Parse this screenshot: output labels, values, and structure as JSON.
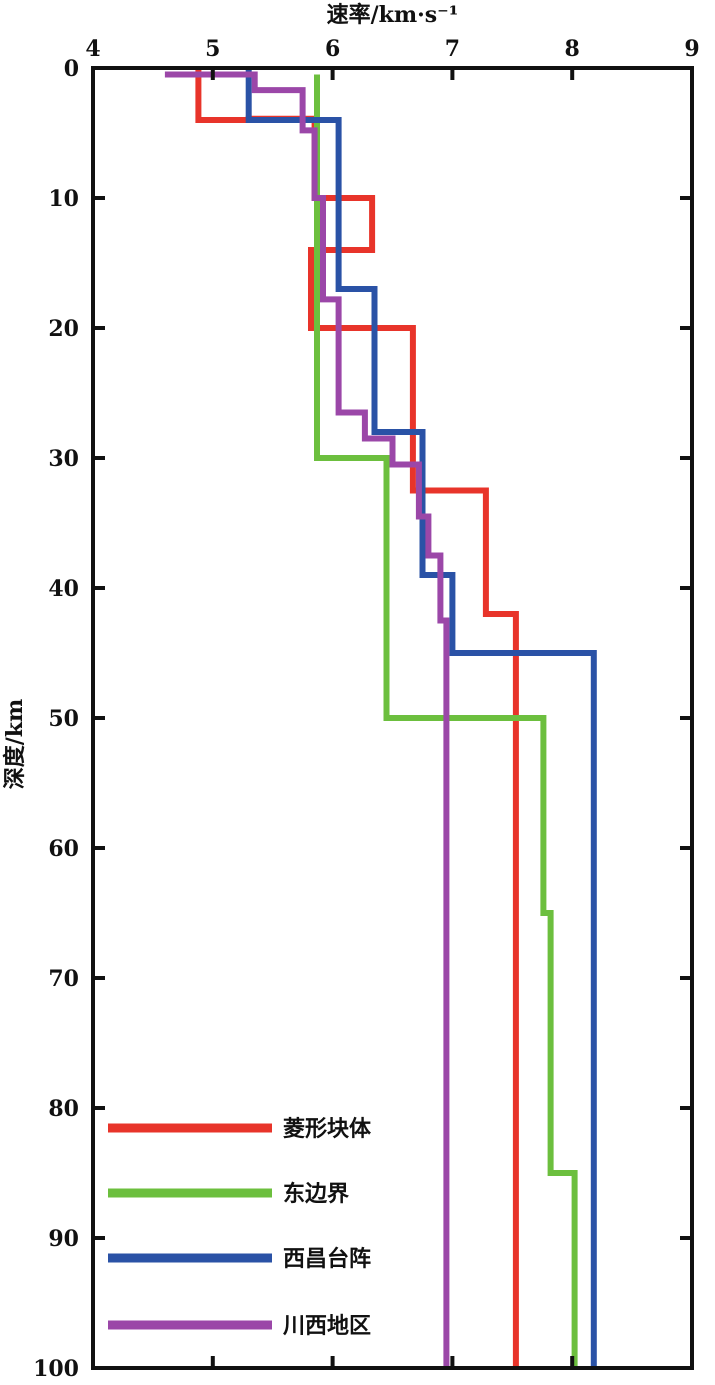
{
  "chart_data": {
    "type": "line",
    "xlabel": "速率/km·s⁻¹",
    "ylabel": "深度/km",
    "xlim": [
      4,
      9
    ],
    "ylim": [
      0,
      100
    ],
    "x_axis_position": "top",
    "y_inverted": true,
    "xticks": [
      "4",
      "5",
      "6",
      "7",
      "8",
      "9"
    ],
    "yticks": [
      "0",
      "10",
      "20",
      "30",
      "40",
      "50",
      "60",
      "70",
      "80",
      "90",
      "100"
    ],
    "grid": false,
    "legend_position": "bottom-left",
    "series": [
      {
        "name": "菱形块体",
        "color": "#e8342a",
        "points": [
          [
            4.88,
            0
          ],
          [
            4.88,
            4
          ],
          [
            5.3,
            4
          ],
          [
            5.3,
            3.9
          ],
          [
            5.85,
            3.9
          ],
          [
            5.85,
            10
          ],
          [
            6.33,
            10
          ],
          [
            6.33,
            14
          ],
          [
            5.82,
            14
          ],
          [
            5.82,
            20
          ],
          [
            6.67,
            20
          ],
          [
            6.67,
            32.5
          ],
          [
            7.28,
            32.5
          ],
          [
            7.28,
            42
          ],
          [
            7.53,
            42
          ],
          [
            7.53,
            100
          ]
        ]
      },
      {
        "name": "东边界",
        "color": "#6cbf3e",
        "points": [
          [
            5.87,
            0.5
          ],
          [
            5.87,
            30
          ],
          [
            6.45,
            30
          ],
          [
            6.45,
            50
          ],
          [
            7.76,
            50
          ],
          [
            7.76,
            65
          ],
          [
            7.82,
            65
          ],
          [
            7.82,
            85
          ],
          [
            8.02,
            85
          ],
          [
            8.02,
            100
          ]
        ]
      },
      {
        "name": "西昌台阵",
        "color": "#2a52a6",
        "points": [
          [
            5.3,
            0
          ],
          [
            5.3,
            4
          ],
          [
            6.05,
            4
          ],
          [
            6.05,
            17
          ],
          [
            6.35,
            17
          ],
          [
            6.35,
            28
          ],
          [
            6.75,
            28
          ],
          [
            6.75,
            39
          ],
          [
            7.0,
            39
          ],
          [
            7.0,
            45
          ],
          [
            8.18,
            45
          ],
          [
            8.18,
            100
          ]
        ]
      },
      {
        "name": "川西地区",
        "color": "#9b47a8",
        "points": [
          [
            4.6,
            0.5
          ],
          [
            5.35,
            0.5
          ],
          [
            5.35,
            1.7
          ],
          [
            5.75,
            1.7
          ],
          [
            5.75,
            4.8
          ],
          [
            5.85,
            4.8
          ],
          [
            5.85,
            10
          ],
          [
            5.92,
            10
          ],
          [
            5.92,
            17.8
          ],
          [
            6.05,
            17.8
          ],
          [
            6.05,
            26.5
          ],
          [
            6.27,
            26.5
          ],
          [
            6.27,
            28.5
          ],
          [
            6.5,
            28.5
          ],
          [
            6.5,
            30.5
          ],
          [
            6.72,
            30.5
          ],
          [
            6.72,
            34.5
          ],
          [
            6.8,
            34.5
          ],
          [
            6.8,
            37.5
          ],
          [
            6.9,
            37.5
          ],
          [
            6.9,
            42.5
          ],
          [
            6.95,
            42.5
          ],
          [
            6.95,
            100
          ]
        ]
      }
    ]
  }
}
